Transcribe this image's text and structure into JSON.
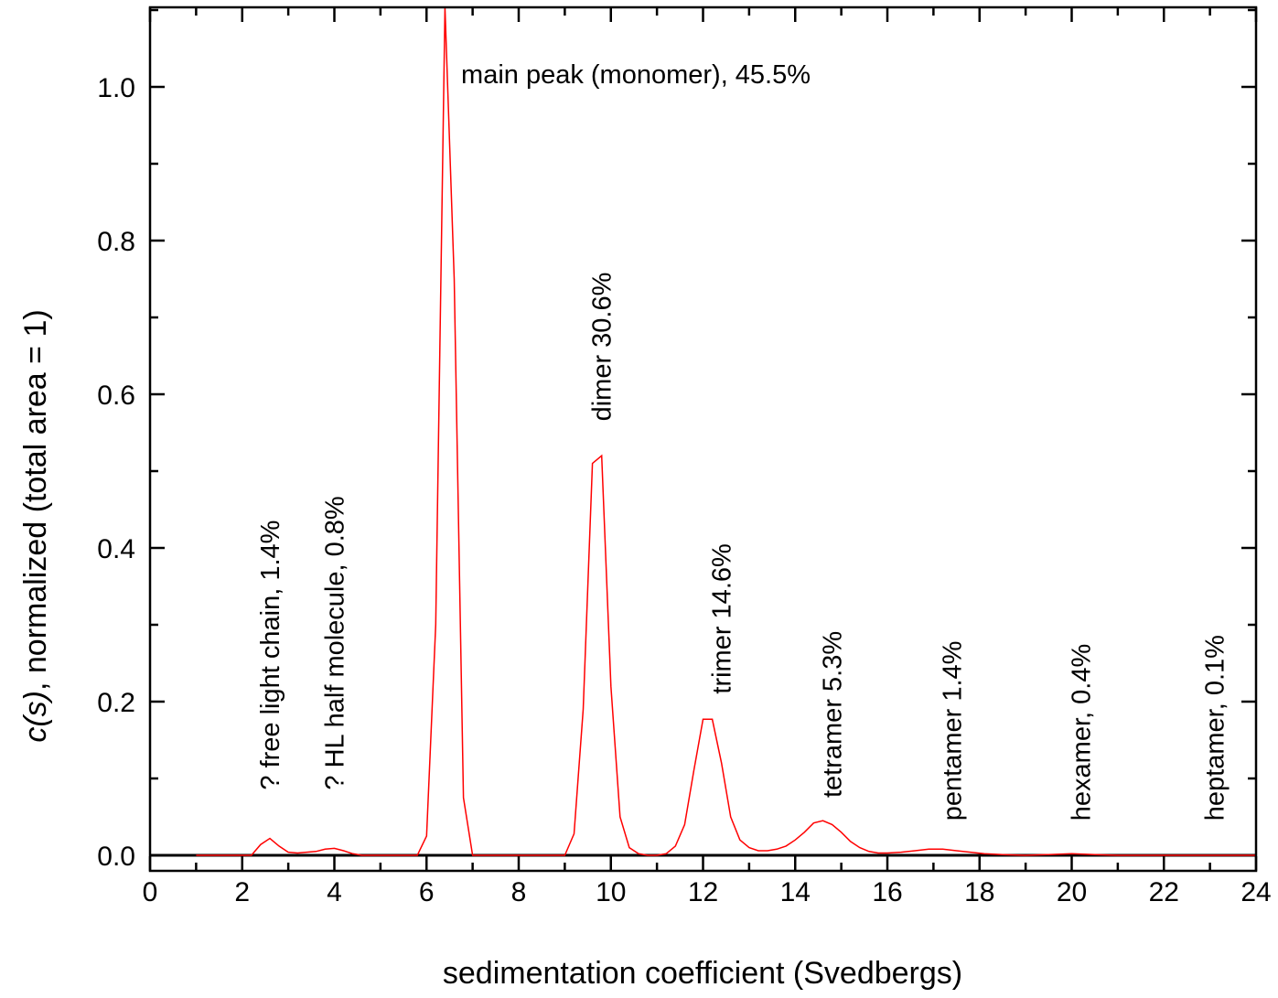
{
  "chart_data": {
    "type": "line",
    "title": "",
    "xlabel": "sedimentation coefficient (Svedbergs)",
    "ylabel_italic": "c(s)",
    "ylabel_rest": ", normalized (total area = 1)",
    "xlim": [
      0,
      24
    ],
    "ylim": [
      -0.02,
      1.1
    ],
    "xticks": [
      0,
      2,
      4,
      6,
      8,
      10,
      12,
      14,
      16,
      18,
      20,
      22,
      24
    ],
    "xtick_labels": [
      "0",
      "2",
      "4",
      "6",
      "8",
      "10",
      "12",
      "14",
      "16",
      "18",
      "20",
      "22",
      "24"
    ],
    "yticks": [
      0.0,
      0.2,
      0.4,
      0.6,
      0.8,
      1.0
    ],
    "ytick_labels": [
      "0.0",
      "0.2",
      "0.4",
      "0.6",
      "0.8",
      "1.0"
    ],
    "grid": false,
    "legend": "none",
    "series_color": "#ff0000",
    "baseline": 0.0,
    "series": [
      {
        "x": [
          1.0,
          2.2,
          2.4,
          2.6,
          2.8,
          3.0,
          3.2,
          3.6,
          3.8,
          4.0,
          4.2,
          4.4,
          4.6,
          5.0,
          5.5,
          5.8,
          6.0,
          6.2,
          6.4,
          6.6,
          6.8,
          7.0,
          7.5,
          8.0,
          8.5,
          9.0,
          9.2,
          9.4,
          9.6,
          9.8,
          10.0,
          10.2,
          10.4,
          10.6,
          10.8,
          11.0,
          11.2,
          11.4,
          11.6,
          11.8,
          12.0,
          12.2,
          12.4,
          12.6,
          12.8,
          13.0,
          13.2,
          13.4,
          13.6,
          13.8,
          14.0,
          14.2,
          14.4,
          14.6,
          14.8,
          15.0,
          15.2,
          15.4,
          15.6,
          15.8,
          16.0,
          16.3,
          16.6,
          16.9,
          17.2,
          17.5,
          17.8,
          18.1,
          18.5,
          19.0,
          19.5,
          20.0,
          20.5,
          21.0,
          22.0,
          23.0,
          24.0
        ],
        "values": [
          0.0,
          0.0,
          0.014,
          0.022,
          0.012,
          0.004,
          0.003,
          0.005,
          0.008,
          0.009,
          0.006,
          0.002,
          0.0,
          0.0,
          0.0,
          0.0,
          0.025,
          0.3,
          1.12,
          0.75,
          0.075,
          0.0,
          0.0,
          0.0,
          0.0,
          0.0,
          0.028,
          0.19,
          0.51,
          0.52,
          0.22,
          0.05,
          0.01,
          0.002,
          0.0,
          0.0,
          0.002,
          0.012,
          0.04,
          0.11,
          0.177,
          0.177,
          0.12,
          0.05,
          0.02,
          0.01,
          0.006,
          0.006,
          0.008,
          0.012,
          0.02,
          0.03,
          0.042,
          0.045,
          0.04,
          0.03,
          0.018,
          0.01,
          0.005,
          0.003,
          0.003,
          0.004,
          0.006,
          0.008,
          0.008,
          0.006,
          0.004,
          0.002,
          0.001,
          0.0,
          0.001,
          0.002,
          0.001,
          0.0,
          0.0,
          0.0,
          0.0
        ]
      }
    ],
    "annotations": [
      {
        "text": "main peak (monomer), 45.5%",
        "x": 6.75,
        "y": 1.0,
        "rotate": false
      },
      {
        "text": "? free light chain, 1.4%",
        "x": 2.6,
        "y": 0.085,
        "rotate": true
      },
      {
        "text": "? HL half molecule, 0.8%",
        "x": 4.0,
        "y": 0.085,
        "rotate": true
      },
      {
        "text": "dimer 30.6%",
        "x": 9.8,
        "y": 0.565,
        "rotate": true
      },
      {
        "text": "trimer 14.6%",
        "x": 12.4,
        "y": 0.21,
        "rotate": true
      },
      {
        "text": "tetramer 5.3%",
        "x": 14.8,
        "y": 0.075,
        "rotate": true
      },
      {
        "text": "pentamer 1.4%",
        "x": 17.4,
        "y": 0.045,
        "rotate": true
      },
      {
        "text": "hexamer, 0.4%",
        "x": 20.2,
        "y": 0.045,
        "rotate": true
      },
      {
        "text": "heptamer, 0.1%",
        "x": 23.1,
        "y": 0.045,
        "rotate": true
      }
    ]
  }
}
